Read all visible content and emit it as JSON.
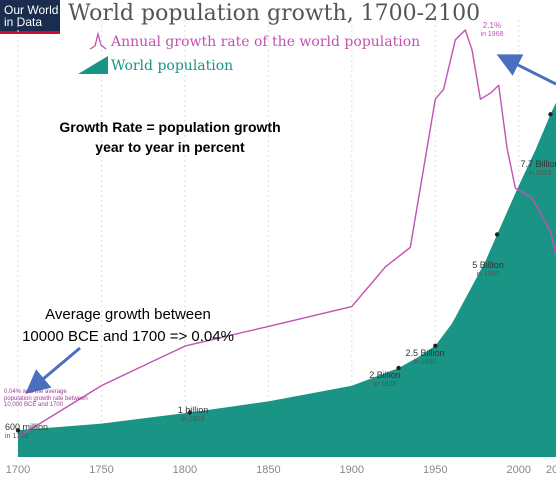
{
  "logo": {
    "line1": "Our World",
    "line2": "in Data"
  },
  "chart_data": {
    "type": "area",
    "title": "World population growth, 1700-2100",
    "xlim": [
      1700,
      2100
    ],
    "x_ticks": [
      1700,
      1750,
      1800,
      1850,
      1900,
      1950,
      2000,
      "20"
    ],
    "series": [
      {
        "name": "World population",
        "type": "area",
        "unit": "billion",
        "color": "#1a9485",
        "points": [
          [
            1700,
            0.6
          ],
          [
            1750,
            0.75
          ],
          [
            1803,
            1.0
          ],
          [
            1850,
            1.25
          ],
          [
            1900,
            1.6
          ],
          [
            1928,
            2.0
          ],
          [
            1940,
            2.25
          ],
          [
            1950,
            2.5
          ],
          [
            1960,
            3.0
          ],
          [
            1970,
            3.7
          ],
          [
            1980,
            4.4
          ],
          [
            1987,
            5.0
          ],
          [
            2000,
            6.1
          ],
          [
            2010,
            6.9
          ],
          [
            2019,
            7.7
          ],
          [
            2024,
            8.1
          ]
        ]
      },
      {
        "name": "Annual growth rate of the world population",
        "type": "line",
        "unit": "%",
        "color": "#c052b2",
        "points": [
          [
            1700,
            0.04
          ],
          [
            1750,
            0.3
          ],
          [
            1800,
            0.5
          ],
          [
            1850,
            0.6
          ],
          [
            1900,
            0.7
          ],
          [
            1920,
            0.9
          ],
          [
            1935,
            1.0
          ],
          [
            1950,
            1.75
          ],
          [
            1955,
            1.8
          ],
          [
            1962,
            2.05
          ],
          [
            1968,
            2.1
          ],
          [
            1972,
            2.0
          ],
          [
            1977,
            1.75
          ],
          [
            1983,
            1.78
          ],
          [
            1988,
            1.82
          ],
          [
            1993,
            1.5
          ],
          [
            1998,
            1.3
          ],
          [
            2008,
            1.25
          ],
          [
            2019,
            1.08
          ],
          [
            2024,
            0.9
          ]
        ]
      }
    ],
    "annotations": [
      {
        "label": "600 million",
        "sub": "in 1700",
        "x": 1700,
        "value": 0.6
      },
      {
        "label": "1 billion",
        "sub": "in 1803",
        "x": 1803,
        "value": 1.0
      },
      {
        "label": "2 Billion",
        "sub": "in 1928",
        "x": 1928,
        "value": 2.0
      },
      {
        "label": "2.5 Billion",
        "sub": "in 1950",
        "x": 1950,
        "value": 2.5
      },
      {
        "label": "5 Billion",
        "sub": "in 1987",
        "x": 1987,
        "value": 5.0
      },
      {
        "label": "7.7 Billion",
        "sub": "in 2019",
        "x": 2019,
        "value": 7.7
      }
    ],
    "rate_annotation": {
      "label": "2.1%",
      "sub": "in 1968"
    },
    "rate_note": "0.04% was the average population growth rate between 10,000 BCE and 1700"
  },
  "notes": {
    "growth_rate_line1": "Growth Rate = population growth",
    "growth_rate_line2": "year to year in percent",
    "average_line1": "Average growth between",
    "average_line2": "10000 BCE and 1700 => 0.04%"
  },
  "colors": {
    "population": "#1a9485",
    "rate": "#c052b2",
    "arrow": "#4a6fbf"
  }
}
